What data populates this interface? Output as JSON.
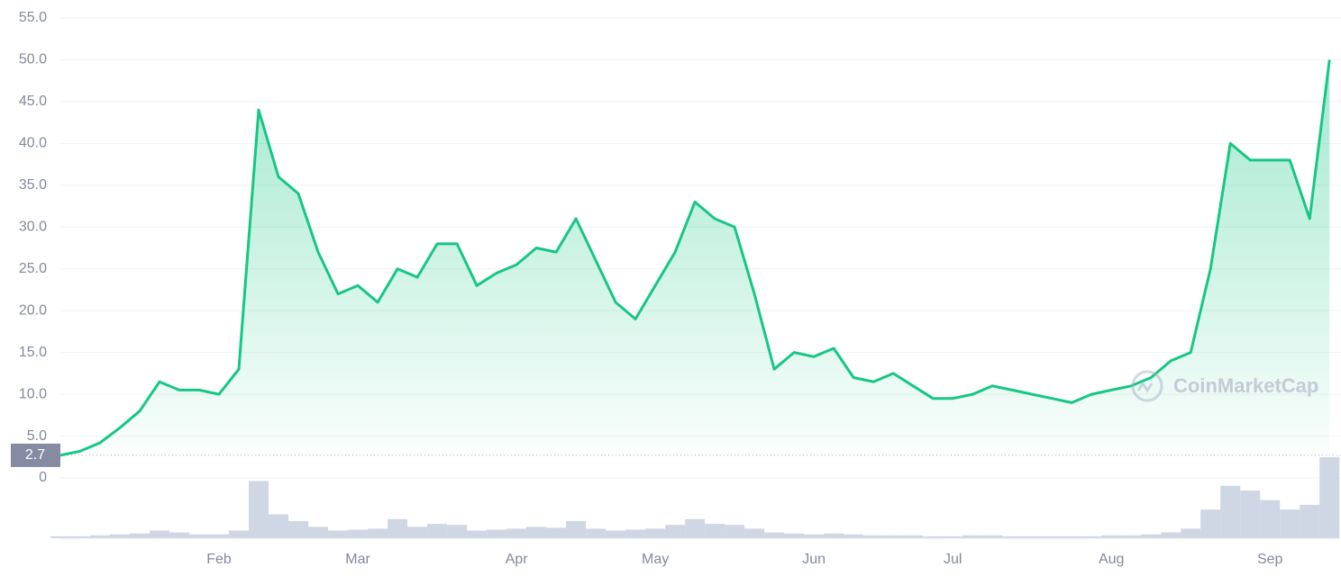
{
  "chart_data": {
    "type": "line",
    "categories": [
      null,
      null,
      null,
      null,
      null,
      null,
      null,
      null,
      "Feb",
      null,
      null,
      null,
      null,
      null,
      null,
      "Mar",
      null,
      null,
      null,
      null,
      null,
      null,
      null,
      "Apr",
      null,
      null,
      null,
      null,
      null,
      null,
      "May",
      null,
      null,
      null,
      null,
      null,
      null,
      null,
      "Jun",
      null,
      null,
      null,
      null,
      null,
      null,
      "Jul",
      null,
      null,
      null,
      null,
      null,
      null,
      null,
      "Aug",
      null,
      null,
      null,
      null,
      null,
      null,
      null,
      "Sep",
      null,
      null,
      null
    ],
    "values": [
      2.7,
      3.2,
      4.2,
      6,
      8,
      11.5,
      10.5,
      10.5,
      10,
      13,
      44,
      36,
      34,
      27,
      22,
      23,
      21,
      25,
      24,
      28,
      28,
      23,
      24.5,
      25.5,
      27.5,
      27,
      31,
      26,
      21,
      19,
      23,
      27,
      33,
      31,
      30,
      22,
      13,
      15,
      14.5,
      15.5,
      12,
      11.5,
      12.5,
      11,
      9.5,
      9.5,
      10,
      11,
      10.5,
      10,
      9.5,
      9,
      10,
      10.5,
      11,
      12,
      14,
      15,
      25,
      40,
      38,
      38,
      38,
      31,
      50
    ],
    "volume": [
      2,
      2,
      3,
      4,
      5,
      8,
      6,
      4,
      4,
      8,
      60,
      25,
      18,
      12,
      8,
      9,
      10,
      20,
      12,
      15,
      14,
      8,
      9,
      10,
      12,
      11,
      18,
      10,
      8,
      9,
      10,
      14,
      20,
      15,
      14,
      10,
      6,
      5,
      4,
      5,
      4,
      3,
      3,
      3,
      2,
      2,
      3,
      3,
      2,
      2,
      2,
      2,
      2,
      3,
      3,
      4,
      6,
      10,
      30,
      55,
      50,
      40,
      30,
      35,
      85
    ],
    "color": "#16c784",
    "volume_color": "#cfd6e4",
    "ylim": [
      0,
      55
    ],
    "yticks": [
      0,
      {
        "value": 5,
        "label": "5.0"
      },
      {
        "value": 10,
        "label": "10.0"
      },
      {
        "value": 15,
        "label": "15.0"
      },
      {
        "value": 20,
        "label": "20.0"
      },
      {
        "value": 25,
        "label": "25.0"
      },
      {
        "value": 30,
        "label": "30.0"
      },
      {
        "value": 35,
        "label": "35.0"
      },
      {
        "value": 40,
        "label": "40.0"
      },
      {
        "value": 45,
        "label": "45.0"
      },
      {
        "value": 50,
        "label": "50.0"
      },
      {
        "value": 55,
        "label": "55.0"
      }
    ],
    "price_marker": {
      "value": 2.7,
      "label": "2.7"
    },
    "watermark": "CoinMarketCap",
    "grid": true
  }
}
